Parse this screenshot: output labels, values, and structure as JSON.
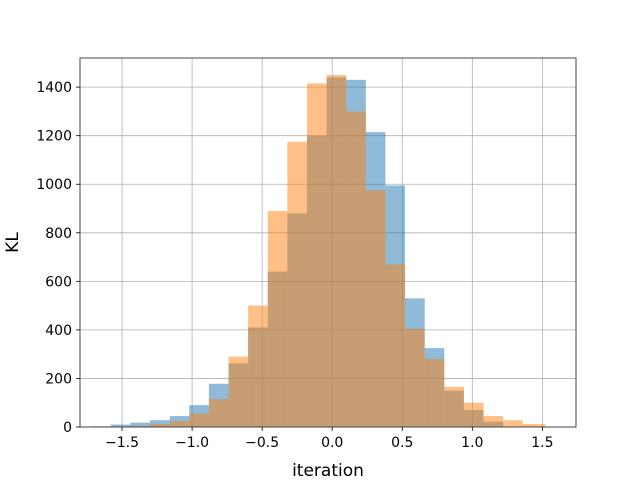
{
  "chart_data": {
    "type": "bar",
    "title": "",
    "xlabel": "iteration",
    "ylabel": "KL",
    "xlim": [
      -1.8,
      1.74
    ],
    "ylim": [
      0,
      1520
    ],
    "xticks": [
      -1.5,
      -1.0,
      -0.5,
      0.0,
      0.5,
      1.0,
      1.5
    ],
    "xtick_labels": [
      "−1.5",
      "−1.0",
      "−0.5",
      "0.0",
      "0.5",
      "1.0",
      "1.5"
    ],
    "yticks": [
      0,
      200,
      400,
      600,
      800,
      1000,
      1200,
      1400
    ],
    "ytick_labels": [
      "0",
      "200",
      "400",
      "600",
      "800",
      "1000",
      "1200",
      "1400"
    ],
    "grid": true,
    "series": [
      {
        "color": "#1f77b4",
        "opacity": 0.5,
        "bin_edges": [
          -1.72,
          -1.58,
          -1.44,
          -1.3,
          -1.16,
          -1.02,
          -0.88,
          -0.74,
          -0.6,
          -0.46,
          -0.32,
          -0.18,
          -0.04,
          0.1,
          0.24,
          0.38,
          0.52,
          0.66,
          0.8,
          0.94,
          1.08,
          1.22
        ],
        "counts": [
          3,
          10,
          18,
          28,
          45,
          90,
          178,
          262,
          410,
          640,
          880,
          1200,
          1440,
          1430,
          1215,
          995,
          530,
          325,
          150,
          70,
          22
        ]
      },
      {
        "color": "#ff7f0e",
        "opacity": 0.5,
        "bin_edges": [
          -1.44,
          -1.3,
          -1.16,
          -1.02,
          -0.88,
          -0.74,
          -0.6,
          -0.46,
          -0.32,
          -0.18,
          -0.04,
          0.1,
          0.24,
          0.38,
          0.52,
          0.66,
          0.8,
          0.94,
          1.08,
          1.22,
          1.36,
          1.52
        ],
        "counts": [
          5,
          12,
          25,
          55,
          115,
          290,
          500,
          890,
          1175,
          1415,
          1450,
          1300,
          975,
          670,
          405,
          280,
          165,
          100,
          45,
          28,
          12
        ]
      }
    ]
  }
}
